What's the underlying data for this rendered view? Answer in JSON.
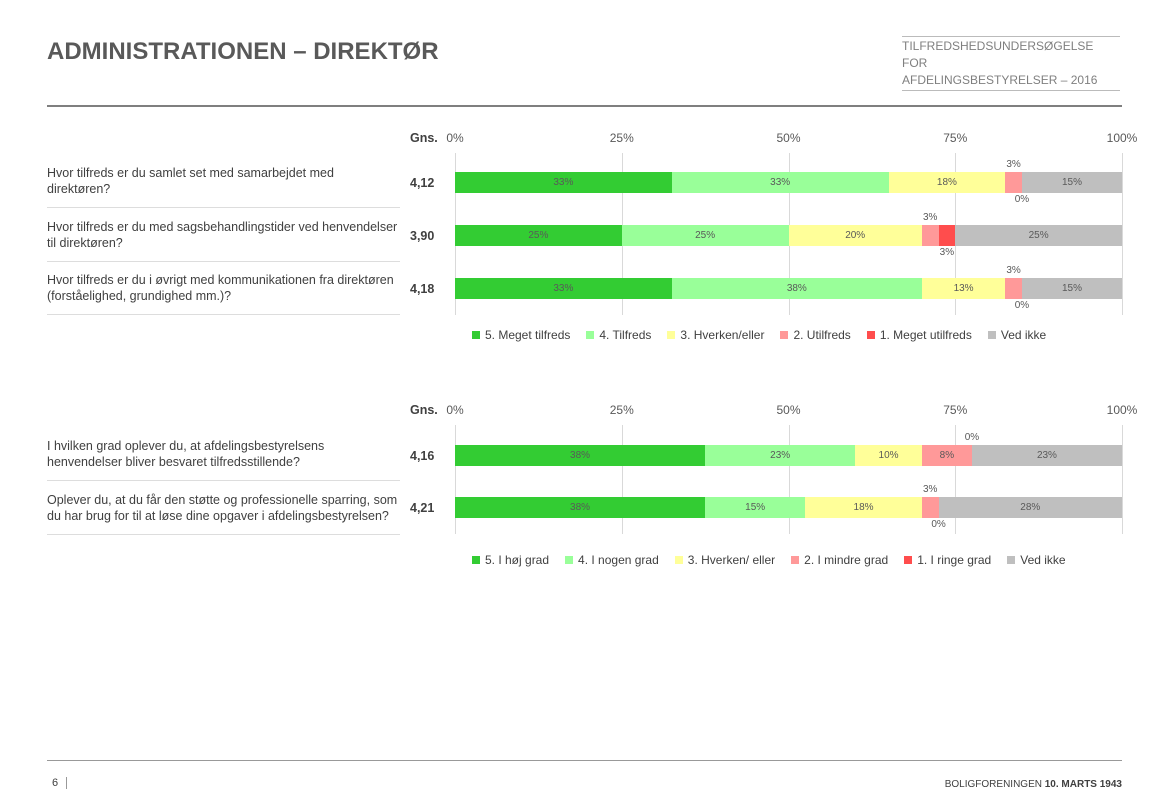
{
  "header": {
    "title": "ADMINISTRATIONEN – DIREKTØR",
    "subtitle_line1": "TILFREDSHEDSUNDERSØGELSE FOR",
    "subtitle_line2": "AFDELINGSBESTYRELSER – 2016"
  },
  "footer": {
    "page": "6",
    "org": "BOLIGFORENINGEN ",
    "org_bold": "10. MARTS 1943"
  },
  "chart_data": [
    {
      "type": "bar",
      "stacked": true,
      "orientation": "horizontal",
      "xlim": [
        0,
        100
      ],
      "ticks": [
        "0%",
        "25%",
        "50%",
        "75%",
        "100%"
      ],
      "avg_header": "Gns.",
      "colors": [
        "#33cc33",
        "#99ff99",
        "#ffff99",
        "#ff9999",
        "#ff4d4d",
        "#bfbfbf"
      ],
      "legend": [
        "5. Meget tilfreds",
        "4. Tilfreds",
        "3. Hverken/eller",
        "2. Utilfreds",
        "1. Meget utilfreds",
        "Ved ikke"
      ],
      "rows": [
        {
          "question": "Hvor tilfreds er du samlet set med samarbejdet med direktøren?",
          "avg": "4,12",
          "values": [
            32.5,
            32.5,
            17.5,
            2.5,
            0,
            15
          ],
          "labels": [
            "33%",
            "33%",
            "18%",
            "3%",
            "0%",
            "15%"
          ]
        },
        {
          "question": "Hvor tilfreds er du med sagsbehandlingstider ved henvendelser til direktøren?",
          "avg": "3,90",
          "values": [
            25,
            25,
            20,
            2.5,
            2.5,
            25
          ],
          "labels": [
            "25%",
            "25%",
            "20%",
            "3%",
            "3%",
            "25%"
          ]
        },
        {
          "question": "Hvor tilfreds er du i øvrigt med kommunikationen fra direktøren (forståelighed, grundighed mm.)?",
          "avg": "4,18",
          "values": [
            32.5,
            37.5,
            12.5,
            2.5,
            0,
            15
          ],
          "labels": [
            "33%",
            "38%",
            "13%",
            "3%",
            "0%",
            "15%"
          ]
        }
      ]
    },
    {
      "type": "bar",
      "stacked": true,
      "orientation": "horizontal",
      "xlim": [
        0,
        100
      ],
      "ticks": [
        "0%",
        "25%",
        "50%",
        "75%",
        "100%"
      ],
      "avg_header": "Gns.",
      "colors": [
        "#33cc33",
        "#99ff99",
        "#ffff99",
        "#ff9999",
        "#ff4d4d",
        "#bfbfbf"
      ],
      "legend": [
        "5. I høj grad",
        "4. I nogen grad",
        "3. Hverken/ eller",
        "2. I mindre grad",
        "1. I ringe grad",
        "Ved ikke"
      ],
      "rows": [
        {
          "question": "I hvilken grad oplever du, at afdelingsbestyrelsens henvendelser bliver besvaret tilfredsstillende?",
          "avg": "4,16",
          "values": [
            37.5,
            22.5,
            10,
            7.5,
            0,
            22.5
          ],
          "labels": [
            "38%",
            "23%",
            "10%",
            "8%",
            "0%",
            "23%"
          ]
        },
        {
          "question": "Oplever du, at du får den støtte og professionelle sparring, som du har brug for til at løse dine opgaver i afdelingsbestyrelsen?",
          "avg": "4,21",
          "values": [
            37.5,
            15,
            17.5,
            2.5,
            0,
            27.5
          ],
          "labels": [
            "38%",
            "15%",
            "18%",
            "3%",
            "0%",
            "28%"
          ]
        }
      ]
    }
  ]
}
